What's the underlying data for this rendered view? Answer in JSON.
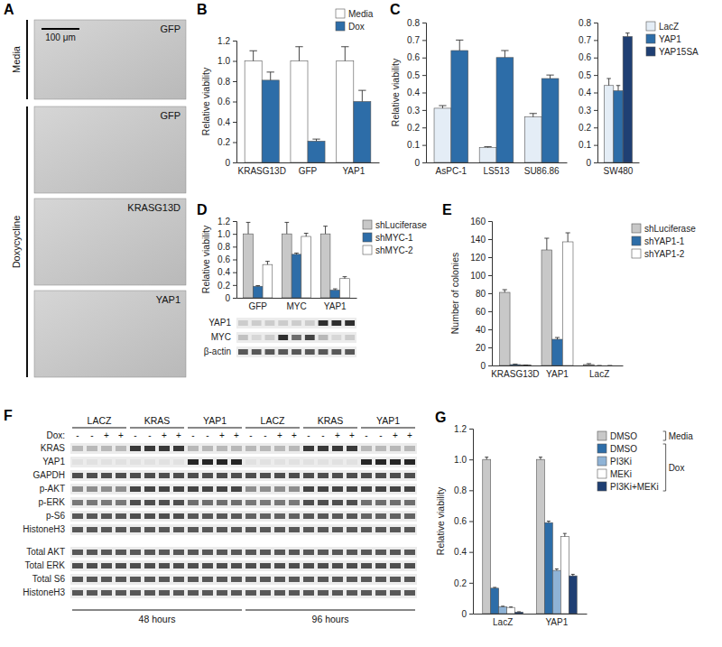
{
  "chart_data": [
    {
      "type": "bar",
      "title": "B",
      "y_label": "Relative viability",
      "categories": [
        "KRASG13D",
        "GFP",
        "YAP1"
      ],
      "series": [
        {
          "name": "Media",
          "color": "#ffffff",
          "values": [
            1.0,
            1.0,
            1.0
          ],
          "errors": [
            0.1,
            0.14,
            0.14
          ]
        },
        {
          "name": "Dox",
          "color": "#2d6da8",
          "values": [
            0.81,
            0.21,
            0.6
          ],
          "errors": [
            0.08,
            0.02,
            0.11
          ]
        }
      ],
      "ylim": [
        0,
        1.2
      ],
      "yticks": [
        0,
        0.2,
        0.4,
        0.6,
        0.8,
        {
          "value": 1,
          "label": "1.0"
        },
        1.2
      ],
      "legend": "upper right"
    },
    {
      "type": "bar",
      "title": "C",
      "y_label": "Relative viability",
      "categories": [
        "AsPC-1",
        "LS513",
        "SU86.86"
      ],
      "series": [
        {
          "color": "#e4edf6",
          "values": [
            0.31,
            0.085,
            0.26
          ],
          "errors": [
            0.015,
            0.005,
            0.02
          ]
        },
        {
          "color": "#2d6da8",
          "values": [
            0.64,
            0.6,
            0.48
          ],
          "errors": [
            0.06,
            0.04,
            0.02
          ]
        }
      ],
      "ylim": [
        0,
        0.8
      ],
      "yticks": [
        0,
        0.1,
        0.2,
        0.3,
        0.4,
        0.5,
        0.6,
        0.7,
        0.8
      ]
    },
    {
      "type": "bar",
      "categories": [
        "SW480"
      ],
      "series": [
        {
          "name": "LacZ",
          "color": "#e4edf6",
          "values": [
            0.44
          ],
          "errors": [
            0.04
          ]
        },
        {
          "name": "YAP1",
          "color": "#2d6da8",
          "values": [
            0.41
          ],
          "errors": [
            0.03
          ]
        },
        {
          "name": "YAP15SA",
          "color": "#1f3f73",
          "values": [
            0.72
          ],
          "errors": [
            0.02
          ]
        }
      ],
      "ylim": [
        0,
        0.8
      ],
      "yticks": [
        0,
        0.1,
        0.2,
        0.3,
        0.4,
        0.5,
        0.6,
        0.7,
        0.8
      ],
      "legend": "right"
    },
    {
      "type": "bar",
      "title": "D",
      "y_label": "Relative viability",
      "categories": [
        "GFP",
        "MYC",
        "YAP1"
      ],
      "series": [
        {
          "name": "shLuciferase",
          "color": "#c8c8c8",
          "values": [
            1.0,
            1.0,
            1.0
          ],
          "errors": [
            0.18,
            0.18,
            0.12
          ]
        },
        {
          "name": "shMYC-1",
          "color": "#2d6da8",
          "values": [
            0.18,
            0.68,
            0.12
          ],
          "errors": [
            0.01,
            0.02,
            0.02
          ]
        },
        {
          "name": "shMYC-2",
          "color": "#ffffff",
          "values": [
            0.52,
            0.96,
            0.3
          ],
          "errors": [
            0.05,
            0.05,
            0.03
          ]
        }
      ],
      "ylim": [
        0,
        1.2
      ],
      "yticks": [
        0,
        0.2,
        0.4,
        0.6,
        0.8,
        {
          "value": 1,
          "label": "1.0"
        },
        1.2
      ],
      "legend": "right"
    },
    {
      "type": "bar",
      "title": "E",
      "y_label": "Number of colonies",
      "categories": [
        "KRASG13D",
        "YAP1",
        "LacZ"
      ],
      "series": [
        {
          "name": "shLuciferase",
          "color": "#c8c8c8",
          "values": [
            81,
            128,
            1
          ],
          "errors": [
            3,
            13,
            1
          ]
        },
        {
          "name": "shYAP1-1",
          "color": "#2d6da8",
          "values": [
            1,
            29,
            0
          ],
          "errors": [
            0.5,
            2,
            0
          ]
        },
        {
          "name": "shYAP1-2",
          "color": "#ffffff",
          "values": [
            0.5,
            137,
            0
          ],
          "errors": [
            0,
            10,
            0
          ]
        }
      ],
      "ylim": [
        0,
        160
      ],
      "yticks": [
        0,
        20,
        40,
        60,
        80,
        100,
        120,
        140,
        160
      ],
      "legend": "right"
    },
    {
      "type": "bar",
      "title": "G",
      "y_label": "Relative viability",
      "categories": [
        "LacZ",
        "YAP1"
      ],
      "series": [
        {
          "name": "DMSO",
          "group": "Media",
          "color": "#c8c8c8",
          "values": [
            1.0,
            1.0
          ],
          "errors": [
            0.015,
            0.015
          ]
        },
        {
          "name": "DMSO",
          "group": "Dox",
          "color": "#2d6da8",
          "values": [
            0.165,
            0.59
          ],
          "errors": [
            0.005,
            0.01
          ]
        },
        {
          "name": "PI3Ki",
          "group": "Dox",
          "color": "#8fb3d6",
          "values": [
            0.045,
            0.28
          ],
          "errors": [
            0.003,
            0.01
          ]
        },
        {
          "name": "MEKi",
          "group": "Dox",
          "color": "#ffffff",
          "values": [
            0.04,
            0.5
          ],
          "errors": [
            0.003,
            0.02
          ]
        },
        {
          "name": "PI3Ki+MEKi",
          "group": "Dox",
          "color": "#1f3f73",
          "values": [
            0.01,
            0.245
          ],
          "errors": [
            0.002,
            0.01
          ]
        }
      ],
      "ylim": [
        0,
        1.2
      ],
      "yticks": [
        0,
        0.2,
        0.4,
        0.6,
        0.8,
        {
          "value": 1,
          "label": "1.0"
        },
        1.2
      ],
      "legend": "right"
    }
  ],
  "panel_a": {
    "title": "A",
    "conditions": [
      {
        "label": "Media",
        "images": [
          {
            "label": "GFP"
          }
        ]
      },
      {
        "label": "Doxycycline",
        "images": [
          {
            "label": "GFP"
          },
          {
            "label": "KRASG13D"
          },
          {
            "label": "YAP1"
          }
        ]
      }
    ],
    "scale_bar": "100 μm"
  },
  "panel_d_blot": {
    "rows": [
      {
        "label": "YAP1",
        "levels": [
          0.15,
          0.15,
          0.15,
          0.15,
          0.15,
          0.15,
          0.9,
          0.9,
          0.9
        ]
      },
      {
        "label": "MYC",
        "levels": [
          0.2,
          0.1,
          0.15,
          0.9,
          0.6,
          0.8,
          0.25,
          0.1,
          0.15
        ]
      },
      {
        "label": "β-actin",
        "levels": [
          0.7,
          0.7,
          0.7,
          0.7,
          0.7,
          0.7,
          0.7,
          0.7,
          0.7
        ]
      }
    ]
  },
  "panel_f": {
    "title": "F",
    "groups": [
      {
        "label": "LACZ"
      },
      {
        "label": "KRAS"
      },
      {
        "label": "YAP1"
      },
      {
        "label": "LACZ"
      },
      {
        "label": "KRAS"
      },
      {
        "label": "YAP1"
      }
    ],
    "dox_label": "Dox:",
    "dox": [
      "-",
      "-",
      "+",
      "+",
      "-",
      "-",
      "+",
      "+",
      "-",
      "-",
      "+",
      "+",
      "-",
      "-",
      "+",
      "+",
      "-",
      "-",
      "+",
      "+",
      "-",
      "-",
      "+",
      "+"
    ],
    "blocks": [
      [
        {
          "label": "KRAS",
          "levels": [
            0.25,
            0.85,
            0.25,
            0.25,
            0.85,
            0.25
          ]
        },
        {
          "label": "YAP1",
          "levels": [
            0.05,
            0.05,
            0.95,
            0.05,
            0.05,
            0.95
          ]
        },
        {
          "label": "GAPDH",
          "levels": [
            0.75,
            0.75,
            0.75,
            0.75,
            0.75,
            0.75
          ]
        },
        {
          "label": "p-AKT",
          "levels": [
            0.45,
            0.8,
            0.8,
            0.45,
            0.8,
            0.8
          ]
        },
        {
          "label": "p-ERK",
          "levels": [
            0.55,
            0.75,
            0.6,
            0.55,
            0.75,
            0.6
          ]
        },
        {
          "label": "p-S6",
          "levels": [
            0.7,
            0.75,
            0.7,
            0.65,
            0.7,
            0.65
          ]
        },
        {
          "label": "HistoneH3",
          "levels": [
            0.7,
            0.7,
            0.7,
            0.7,
            0.7,
            0.7
          ]
        }
      ],
      [
        {
          "label": "Total AKT",
          "levels": [
            0.7,
            0.7,
            0.7,
            0.7,
            0.7,
            0.7
          ]
        },
        {
          "label": "Total ERK",
          "levels": [
            0.75,
            0.75,
            0.75,
            0.75,
            0.75,
            0.75
          ]
        },
        {
          "label": "Total S6",
          "levels": [
            0.7,
            0.7,
            0.7,
            0.7,
            0.7,
            0.7
          ]
        },
        {
          "label": "HistoneH3",
          "levels": [
            0.7,
            0.7,
            0.7,
            0.7,
            0.7,
            0.7
          ]
        }
      ]
    ],
    "timepoints": [
      "48 hours",
      "96 hours"
    ]
  }
}
